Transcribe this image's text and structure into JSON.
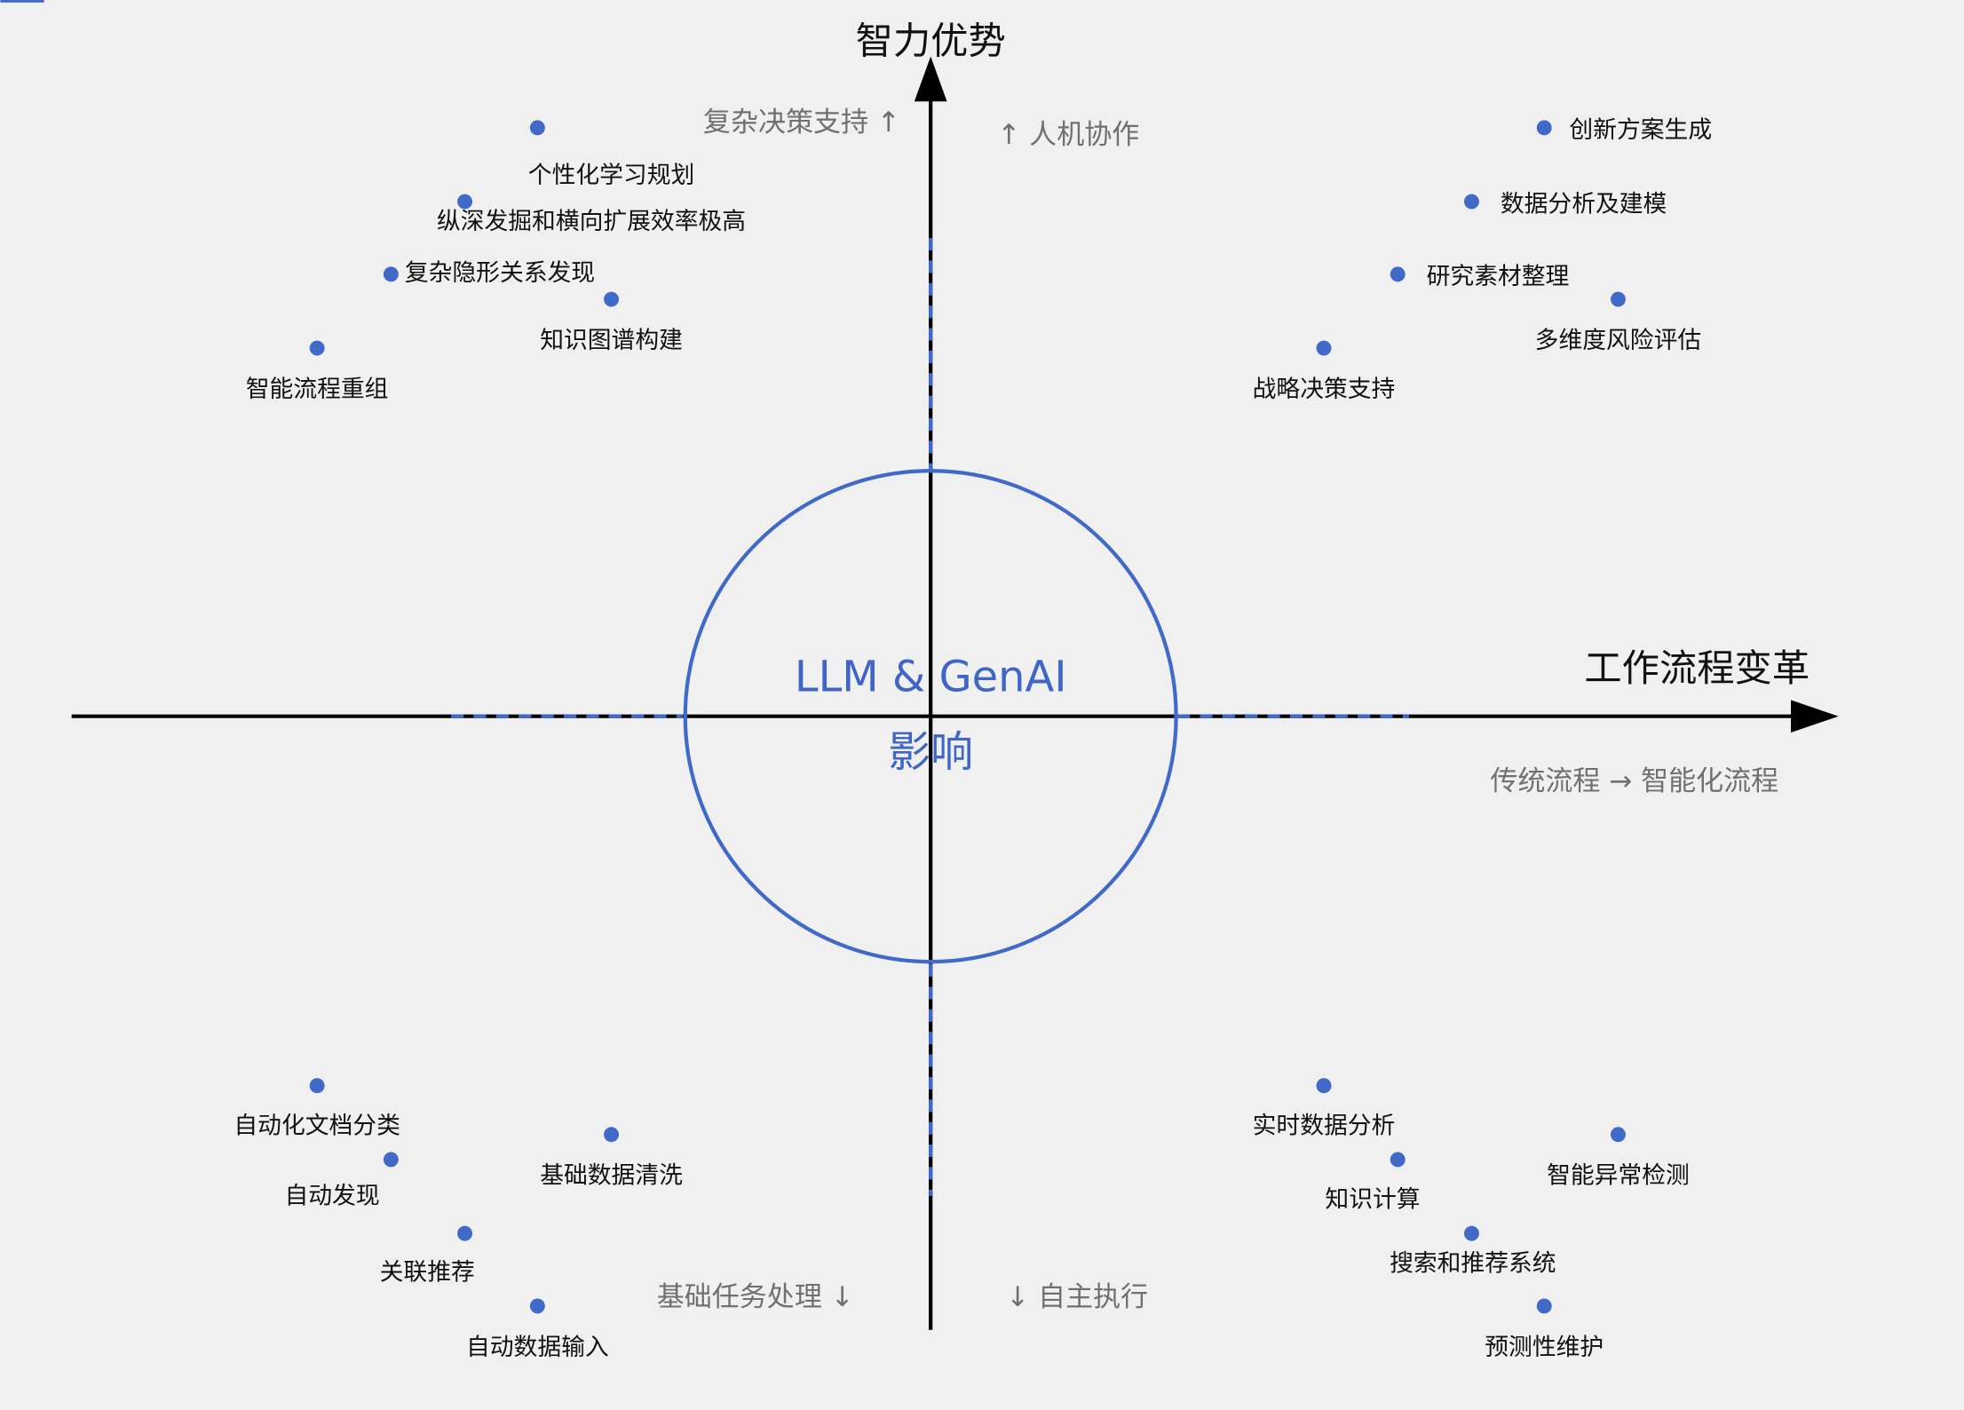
{
  "colors": {
    "accent": "#4169c8",
    "axis": "#000000",
    "hint": "#707070",
    "background": "#f0f0f0"
  },
  "axes": {
    "y_title": "智力优势",
    "x_title": "工作流程变革",
    "x_subtitle": "传统流程 → 智能化流程"
  },
  "center": {
    "line1": "LLM & GenAI",
    "line2": "影响"
  },
  "hints": {
    "top_left": "复杂决策支持 ↑",
    "top_right": "↑ 人机协作",
    "bottom_left": "基础任务处理 ↓",
    "bottom_right": "↓ 自主执行"
  },
  "quadrants": {
    "top_left": [
      "个性化学习规划",
      "纵深发掘和横向扩展效率极高",
      "复杂隐形关系发现",
      "知识图谱构建",
      "智能流程重组"
    ],
    "top_right": [
      "创新方案生成",
      "数据分析及建模",
      "研究素材整理",
      "多维度风险评估",
      "战略决策支持"
    ],
    "bottom_left": [
      "自动化文档分类",
      "自动发现",
      "基础数据清洗",
      "关联推荐",
      "自动数据输入"
    ],
    "bottom_right": [
      "实时数据分析",
      "知识计算",
      "智能异常检测",
      "搜索和推荐系统",
      "预测性维护"
    ]
  }
}
